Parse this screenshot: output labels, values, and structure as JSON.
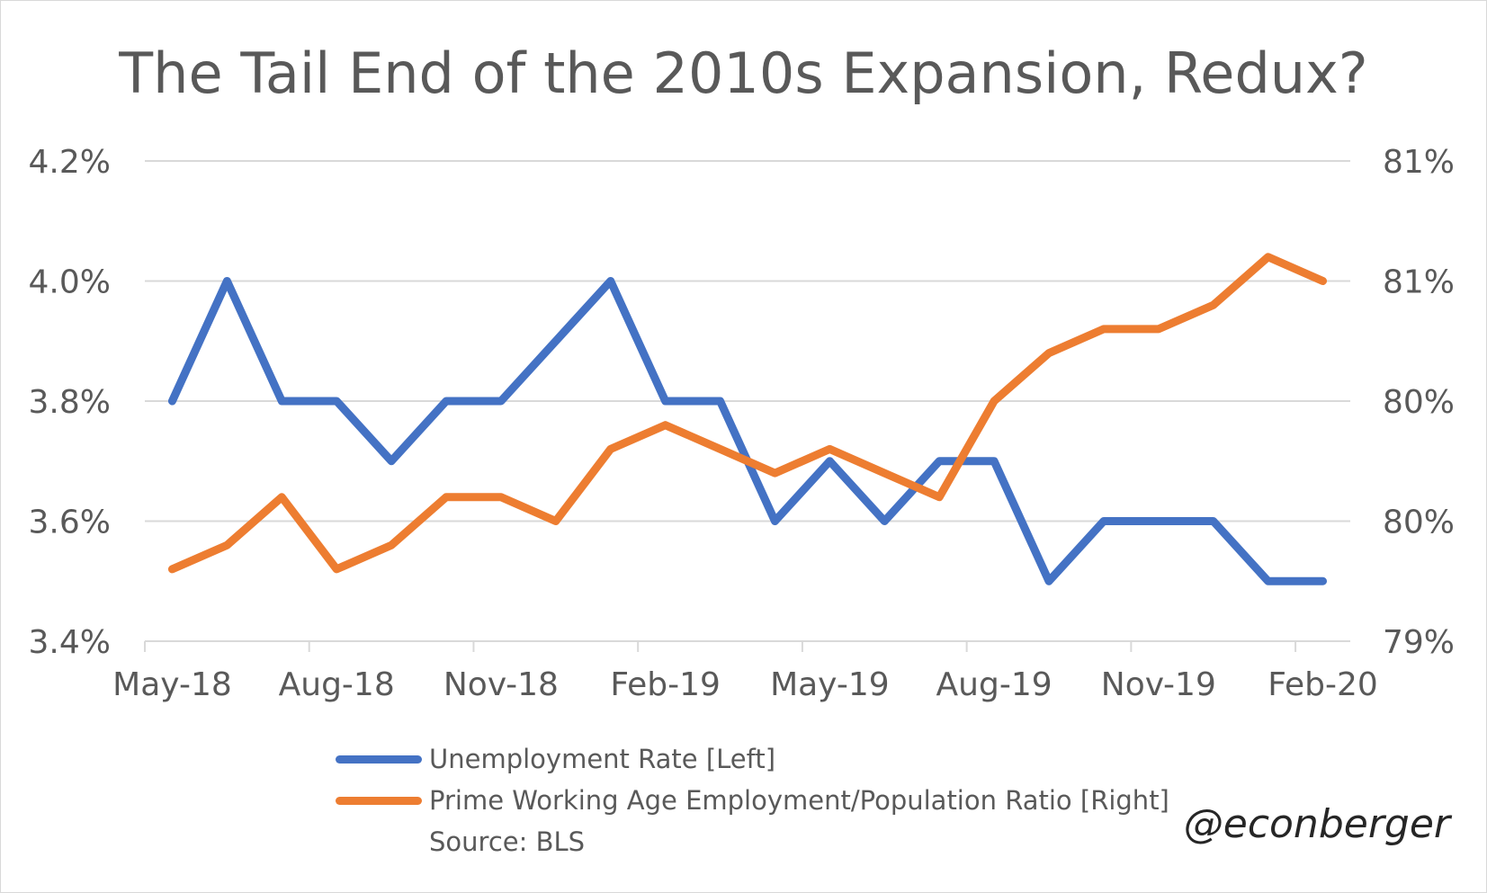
{
  "chart_data": {
    "type": "line",
    "title": "The Tail End of the 2010s Expansion, Redux?",
    "categories": [
      "May-18",
      "Jun-18",
      "Jul-18",
      "Aug-18",
      "Sep-18",
      "Oct-18",
      "Nov-18",
      "Dec-18",
      "Jan-19",
      "Feb-19",
      "Mar-19",
      "Apr-19",
      "May-19",
      "Jun-19",
      "Jul-19",
      "Aug-19",
      "Sep-19",
      "Oct-19",
      "Nov-19",
      "Dec-19",
      "Jan-20",
      "Feb-20"
    ],
    "x_tick_labels": [
      "May-18",
      "Aug-18",
      "Nov-18",
      "Feb-19",
      "May-19",
      "Aug-19",
      "Nov-19",
      "Feb-20"
    ],
    "left_axis": {
      "ylim": [
        3.4,
        4.2
      ],
      "tick_labels": [
        "3.4%",
        "3.6%",
        "3.8%",
        "4.0%",
        "4.2%"
      ]
    },
    "right_axis": {
      "ylim": [
        79.0,
        81.0
      ],
      "tick_labels": [
        "79%",
        "80%",
        "80%",
        "81%",
        "81%"
      ]
    },
    "grid": "horizontal",
    "legend_position": "bottom",
    "series": [
      {
        "name": "Unemployment Rate [Left]",
        "axis": "left",
        "color": "#4472C4",
        "values": [
          3.8,
          4.0,
          3.8,
          3.8,
          3.7,
          3.8,
          3.8,
          3.9,
          4.0,
          3.8,
          3.8,
          3.6,
          3.7,
          3.6,
          3.7,
          3.7,
          3.5,
          3.6,
          3.6,
          3.6,
          3.5,
          3.5
        ]
      },
      {
        "name": "Prime Working Age Employment/Population Ratio [Right]",
        "axis": "right",
        "color": "#ED7D31",
        "values": [
          79.3,
          79.4,
          79.6,
          79.3,
          79.4,
          79.6,
          79.6,
          79.5,
          79.8,
          79.9,
          79.8,
          79.7,
          79.8,
          79.7,
          79.6,
          80.0,
          80.2,
          80.3,
          80.3,
          80.4,
          80.6,
          80.5
        ]
      }
    ],
    "source": "Source: BLS"
  },
  "watermark": "@econberger"
}
